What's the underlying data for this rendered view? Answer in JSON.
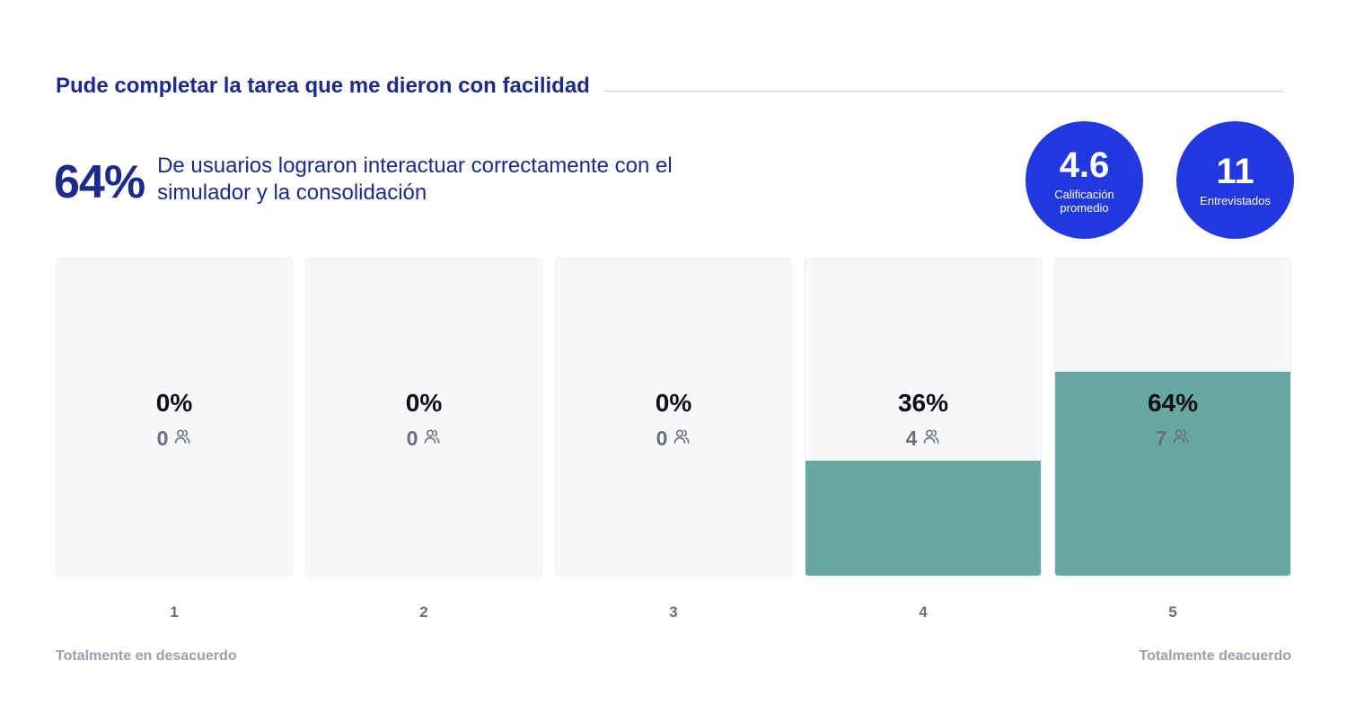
{
  "question": "Pude completar la tarea que me dieron con facilidad",
  "headline": {
    "percent": "64%",
    "description": "De usuarios lograron interactuar correctamente con el simulador y la consolidación"
  },
  "stats": [
    {
      "value": "4.6",
      "label": "Calificación promedio"
    },
    {
      "value": "11",
      "label": "Entrevistados"
    }
  ],
  "scale_labels": {
    "left": "Totalmente en desacuerdo",
    "right": "Totalmente deacuerdo"
  },
  "colors": {
    "title": "#1b2a8c",
    "stat_circle": "#2138e0",
    "fill": "#68a8a2",
    "bar_background": "#f7f8fa"
  },
  "chart_data": {
    "type": "bar",
    "categories": [
      "1",
      "2",
      "3",
      "4",
      "5"
    ],
    "values": [
      0,
      0,
      0,
      36,
      64
    ],
    "value_labels": [
      "0%",
      "0%",
      "0%",
      "36%",
      "64%"
    ],
    "counts": [
      0,
      0,
      0,
      4,
      7
    ],
    "icon": "people-icon",
    "ylim": [
      0,
      100
    ]
  }
}
